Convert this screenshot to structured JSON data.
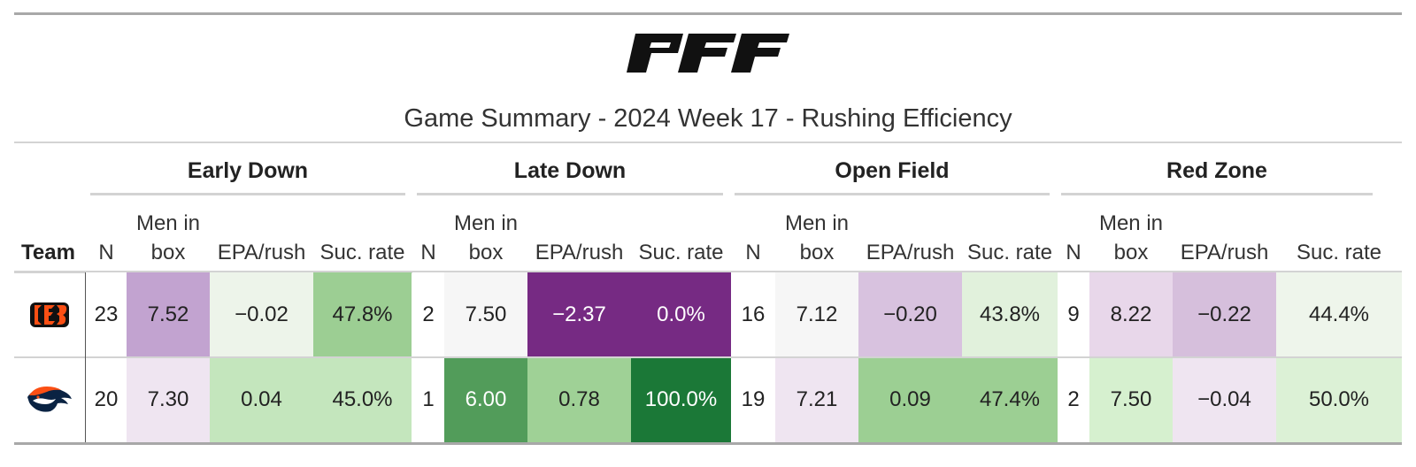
{
  "title": "Game Summary - 2024 Week 17 - Rushing Efficiency",
  "brand": "PFF",
  "team_header": "Team",
  "groups": [
    "Early Down",
    "Late Down",
    "Open Field",
    "Red Zone"
  ],
  "subheaders": [
    "N",
    "Men in box",
    "EPA/rush",
    "Suc. rate"
  ],
  "rows": [
    {
      "team_icon": "bengals-logo",
      "cells": [
        "23",
        "7.52",
        "−0.02",
        "47.8%",
        "2",
        "7.50",
        "−2.37",
        "0.0%",
        "16",
        "7.12",
        "−0.20",
        "43.8%",
        "9",
        "8.22",
        "−0.22",
        "44.4%"
      ],
      "colors": [
        "#ffffff",
        "#c2a3d0",
        "#edf4ea",
        "#9cce93",
        "#ffffff",
        "#f6f6f6",
        "#762a83",
        "#762a83",
        "#ffffff",
        "#f6f6f6",
        "#d8c2df",
        "#e1f1dc",
        "#ffffff",
        "#e8d7ea",
        "#d6bfdc",
        "#eef5eb"
      ],
      "text_colors": [
        "#222",
        "#222",
        "#222",
        "#222",
        "#222",
        "#222",
        "#ffffff",
        "#ffffff",
        "#222",
        "#222",
        "#222",
        "#222",
        "#222",
        "#222",
        "#222",
        "#222"
      ]
    },
    {
      "team_icon": "broncos-logo",
      "cells": [
        "20",
        "7.30",
        "0.04",
        "45.0%",
        "1",
        "6.00",
        "0.78",
        "100.0%",
        "19",
        "7.21",
        "0.09",
        "47.4%",
        "2",
        "7.50",
        "−0.04",
        "50.0%"
      ],
      "colors": [
        "#ffffff",
        "#efe5f1",
        "#c4e6bd",
        "#c4e6bd",
        "#ffffff",
        "#529c5a",
        "#9fd196",
        "#1b7837",
        "#ffffff",
        "#efe5f1",
        "#9ccf93",
        "#9ccf93",
        "#ffffff",
        "#d6f0cf",
        "#efe5f1",
        "#dcf1d6"
      ],
      "text_colors": [
        "#222",
        "#222",
        "#222",
        "#222",
        "#222",
        "#ffffff",
        "#222",
        "#ffffff",
        "#222",
        "#222",
        "#222",
        "#222",
        "#222",
        "#222",
        "#222",
        "#222"
      ]
    }
  ]
}
